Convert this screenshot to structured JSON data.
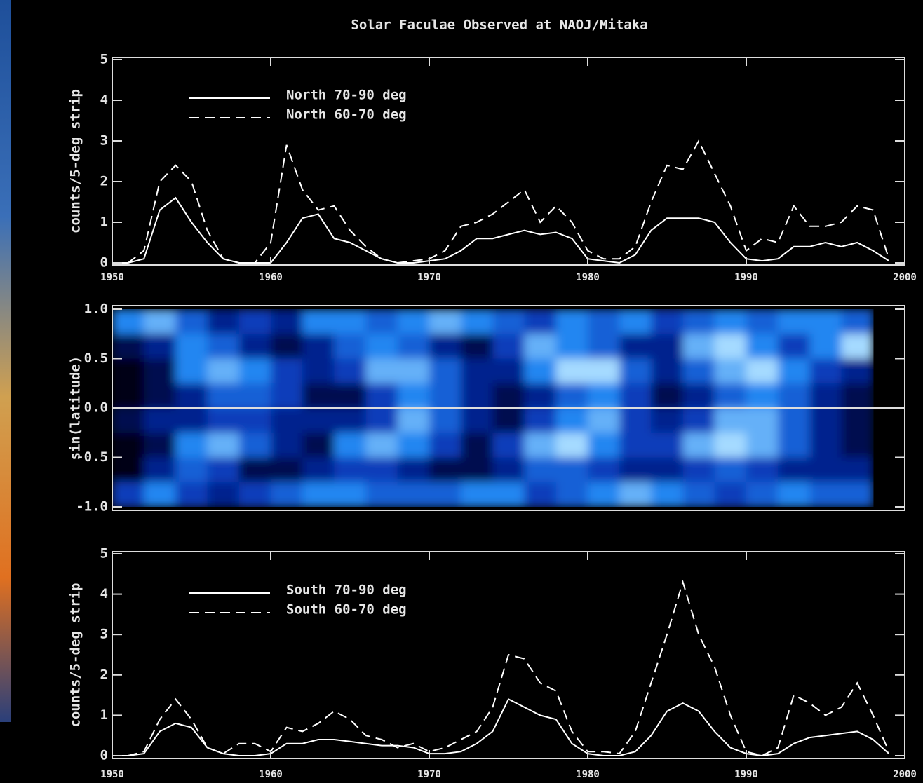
{
  "chart_data": [
    {
      "type": "line",
      "title": "Solar Faculae Observed at NAOJ/Mitaka",
      "ylabel": "counts/5-deg strip",
      "x": [
        1950,
        1951,
        1952,
        1953,
        1954,
        1955,
        1956,
        1957,
        1958,
        1959,
        1960,
        1961,
        1962,
        1963,
        1964,
        1965,
        1966,
        1967,
        1968,
        1969,
        1970,
        1971,
        1972,
        1973,
        1974,
        1975,
        1976,
        1977,
        1978,
        1979,
        1980,
        1981,
        1982,
        1983,
        1984,
        1985,
        1986,
        1987,
        1988,
        1989,
        1990,
        1991,
        1992,
        1993,
        1994,
        1995,
        1996,
        1997,
        1998,
        1999
      ],
      "xlim": [
        1950,
        2000
      ],
      "xticks": [
        1950,
        1960,
        1970,
        1980,
        1990,
        2000
      ],
      "ylim": [
        0,
        5
      ],
      "yticks": [
        0,
        1,
        2,
        3,
        4,
        5
      ],
      "series": [
        {
          "name": "North 70-90 deg",
          "color": "#ffffff",
          "style": "solid",
          "values": [
            0,
            0,
            0.1,
            1.3,
            1.6,
            1.0,
            0.5,
            0.1,
            0,
            0,
            0,
            0.5,
            1.1,
            1.2,
            0.6,
            0.5,
            0.3,
            0.1,
            0,
            0,
            0.05,
            0.1,
            0.3,
            0.6,
            0.6,
            0.7,
            0.8,
            0.7,
            0.75,
            0.6,
            0.1,
            0.05,
            0,
            0.2,
            0.8,
            1.1,
            1.1,
            1.1,
            1.0,
            0.5,
            0.1,
            0.05,
            0.1,
            0.4,
            0.4,
            0.5,
            0.4,
            0.5,
            0.3,
            0.05
          ]
        },
        {
          "name": "North 60-70 deg",
          "color": "#ffffff",
          "style": "dashed",
          "values": [
            0,
            0,
            0.3,
            2.0,
            2.4,
            2.0,
            0.8,
            0.1,
            0,
            0,
            0.5,
            2.9,
            1.8,
            1.3,
            1.4,
            0.8,
            0.4,
            0.1,
            0,
            0.05,
            0.1,
            0.3,
            0.9,
            1.0,
            1.2,
            1.5,
            1.8,
            1.0,
            1.4,
            1.0,
            0.3,
            0.1,
            0.1,
            0.4,
            1.5,
            2.4,
            2.3,
            3.0,
            2.2,
            1.4,
            0.3,
            0.6,
            0.5,
            1.4,
            0.9,
            0.9,
            1.0,
            1.4,
            1.3,
            0.1
          ]
        }
      ]
    },
    {
      "type": "heatmap",
      "ylabel": "sin(latitude)",
      "xlim": [
        1950,
        2000
      ],
      "ylim": [
        -1,
        1
      ],
      "yticks": [
        {
          "value": 1,
          "label": "1.0"
        },
        {
          "value": 0.5,
          "label": "0.5"
        },
        {
          "value": 0,
          "label": "0.0"
        },
        {
          "value": -0.5,
          "label": "-0.5"
        },
        {
          "value": -1,
          "label": "-1.0"
        }
      ],
      "reference_line": 0,
      "x_edges": [
        1950,
        1952,
        1954,
        1956,
        1958,
        1960,
        1962,
        1964,
        1966,
        1968,
        1970,
        1972,
        1974,
        1976,
        1978,
        1980,
        1982,
        1984,
        1986,
        1988,
        1990,
        1992,
        1994,
        1996,
        1998
      ],
      "y_edges": [
        1,
        0.75,
        0.5,
        0.25,
        0,
        -0.25,
        -0.5,
        -0.75,
        -1
      ],
      "z": [
        [
          6,
          7,
          5,
          3,
          4,
          3,
          6,
          6,
          5,
          6,
          7,
          6,
          5,
          4,
          6,
          5,
          6,
          4,
          5,
          6,
          5,
          6,
          6,
          5
        ],
        [
          2,
          3,
          6,
          5,
          3,
          2,
          3,
          5,
          6,
          5,
          3,
          2,
          4,
          7,
          6,
          5,
          3,
          3,
          7,
          8,
          6,
          4,
          6,
          8
        ],
        [
          1,
          2,
          6,
          7,
          6,
          4,
          3,
          4,
          7,
          7,
          5,
          3,
          3,
          6,
          8,
          8,
          5,
          3,
          5,
          7,
          8,
          6,
          4,
          3
        ],
        [
          1,
          2,
          3,
          5,
          5,
          4,
          2,
          2,
          4,
          6,
          5,
          3,
          2,
          3,
          5,
          6,
          4,
          2,
          3,
          5,
          6,
          5,
          3,
          2
        ],
        [
          2,
          3,
          3,
          4,
          4,
          3,
          3,
          3,
          4,
          7,
          5,
          3,
          2,
          4,
          6,
          7,
          4,
          3,
          4,
          7,
          7,
          5,
          3,
          2
        ],
        [
          1,
          2,
          6,
          7,
          5,
          3,
          2,
          6,
          7,
          6,
          4,
          2,
          4,
          7,
          8,
          6,
          4,
          4,
          7,
          8,
          7,
          5,
          3,
          2
        ],
        [
          1,
          3,
          5,
          4,
          2,
          2,
          3,
          4,
          4,
          3,
          2,
          2,
          3,
          5,
          5,
          4,
          3,
          3,
          4,
          5,
          4,
          3,
          3,
          3
        ],
        [
          4,
          6,
          4,
          3,
          4,
          5,
          6,
          6,
          5,
          5,
          5,
          6,
          6,
          4,
          5,
          6,
          7,
          6,
          5,
          4,
          5,
          6,
          5,
          5
        ]
      ]
    },
    {
      "type": "line",
      "ylabel": "counts/5-deg strip",
      "x": [
        1950,
        1951,
        1952,
        1953,
        1954,
        1955,
        1956,
        1957,
        1958,
        1959,
        1960,
        1961,
        1962,
        1963,
        1964,
        1965,
        1966,
        1967,
        1968,
        1969,
        1970,
        1971,
        1972,
        1973,
        1974,
        1975,
        1976,
        1977,
        1978,
        1979,
        1980,
        1981,
        1982,
        1983,
        1984,
        1985,
        1986,
        1987,
        1988,
        1989,
        1990,
        1991,
        1992,
        1993,
        1994,
        1995,
        1996,
        1997,
        1998,
        1999
      ],
      "xlim": [
        1950,
        2000
      ],
      "xticks": [
        1950,
        1960,
        1970,
        1980,
        1990,
        2000
      ],
      "ylim": [
        0,
        5
      ],
      "yticks": [
        0,
        1,
        2,
        3,
        4,
        5
      ],
      "series": [
        {
          "name": "South 70-90 deg",
          "color": "#ffffff",
          "style": "solid",
          "values": [
            0,
            0,
            0.05,
            0.6,
            0.8,
            0.7,
            0.2,
            0.05,
            0,
            0,
            0.05,
            0.3,
            0.3,
            0.4,
            0.4,
            0.35,
            0.3,
            0.25,
            0.25,
            0.2,
            0.05,
            0.05,
            0.1,
            0.3,
            0.6,
            1.4,
            1.2,
            1.0,
            0.9,
            0.3,
            0.05,
            0,
            0,
            0.1,
            0.5,
            1.1,
            1.3,
            1.1,
            0.6,
            0.2,
            0.05,
            0,
            0.05,
            0.3,
            0.45,
            0.5,
            0.55,
            0.6,
            0.4,
            0.05
          ]
        },
        {
          "name": "South 60-70 deg",
          "color": "#ffffff",
          "style": "dashed",
          "values": [
            0,
            0,
            0.1,
            0.9,
            1.4,
            0.9,
            0.2,
            0.05,
            0.3,
            0.3,
            0.1,
            0.7,
            0.6,
            0.8,
            1.1,
            0.9,
            0.5,
            0.4,
            0.2,
            0.3,
            0.1,
            0.2,
            0.4,
            0.6,
            1.2,
            2.5,
            2.4,
            1.8,
            1.6,
            0.6,
            0.1,
            0.1,
            0.05,
            0.6,
            1.8,
            3.0,
            4.3,
            3.0,
            2.2,
            1.0,
            0.1,
            0,
            0.2,
            1.5,
            1.3,
            1.0,
            1.2,
            1.8,
            1.0,
            0.1
          ]
        }
      ]
    }
  ]
}
